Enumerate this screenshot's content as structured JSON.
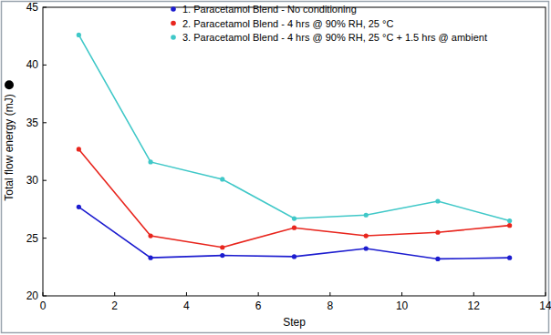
{
  "chart_data": {
    "type": "line",
    "x_label": "Step",
    "y_label": "Total flow energy (mJ)",
    "x": [
      1,
      3,
      5,
      7,
      9,
      11,
      13
    ],
    "series": [
      {
        "name": "1. Paracetamol Blend - No conditioning",
        "color": "#1c1ccf",
        "values": [
          27.7,
          23.3,
          23.5,
          23.4,
          24.1,
          23.2,
          23.3
        ]
      },
      {
        "name": "2. Paracetamol Blend - 4 hrs @ 90% RH, 25 °C",
        "color": "#e8261e",
        "values": [
          32.7,
          25.2,
          24.2,
          25.9,
          25.2,
          25.5,
          26.1
        ]
      },
      {
        "name": "3. Paracetamol Blend - 4 hrs @ 90% RH, 25 °C + 1.5 hrs @ ambient",
        "color": "#40c8c8",
        "values": [
          42.6,
          31.6,
          30.1,
          26.7,
          27.0,
          28.2,
          26.5
        ]
      }
    ],
    "xlim": [
      0,
      14
    ],
    "xticks": [
      0,
      2,
      4,
      6,
      8,
      10,
      12,
      14
    ],
    "ylim": [
      20,
      45
    ],
    "yticks": [
      20,
      25,
      30,
      35,
      40,
      45
    ],
    "grid": false,
    "legend": "top",
    "marker": "circle",
    "line_style": "solid"
  }
}
